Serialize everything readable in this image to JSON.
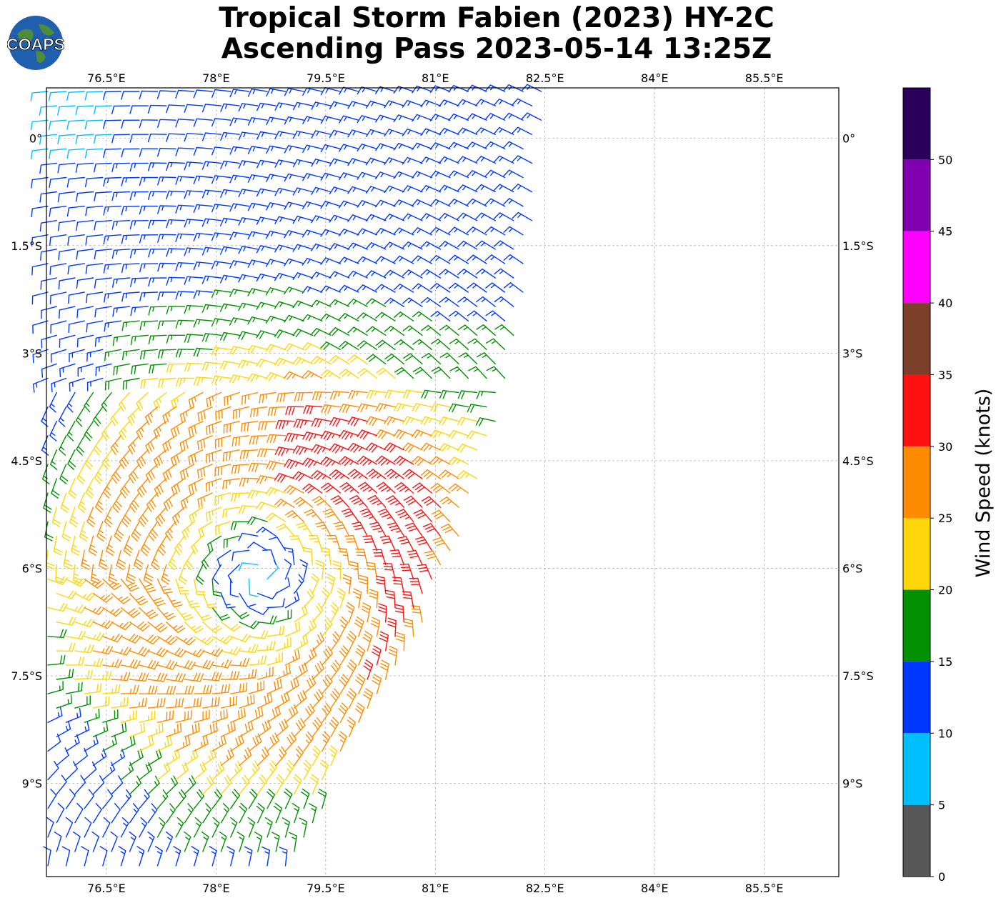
{
  "header": {
    "title_line1": "Tropical Storm Fabien (2023) HY-2C",
    "title_line2": "Ascending Pass 2023-05-14 13:25Z",
    "logo_text": "COAPS"
  },
  "map": {
    "lon_range": [
      75.68,
      86.52
    ],
    "lat_range": [
      -10.3,
      0.7
    ],
    "lon_ticks": [
      76.5,
      78,
      79.5,
      81,
      82.5,
      84,
      85.5
    ],
    "lon_tick_labels": [
      "76.5°E",
      "78°E",
      "79.5°E",
      "81°E",
      "82.5°E",
      "84°E",
      "85.5°E"
    ],
    "lat_ticks": [
      0,
      -1.5,
      -3,
      -4.5,
      -6,
      -7.5,
      -9
    ],
    "lat_tick_labels": [
      "0°",
      "1.5°S",
      "3°S",
      "4.5°S",
      "6°S",
      "7.5°S",
      "9°S"
    ],
    "gridlines": true,
    "storm_center_approx": {
      "lon": 78.6,
      "lat": -6.1
    }
  },
  "colorbar": {
    "label": "Wind Speed (knots)",
    "bounds": [
      0,
      5,
      10,
      15,
      20,
      25,
      30,
      35,
      40,
      45,
      50,
      55
    ],
    "tick_labels": [
      "0",
      "5",
      "10",
      "15",
      "20",
      "25",
      "30",
      "35",
      "40",
      "45",
      "50"
    ],
    "colors": [
      "#585858",
      "#00bfff",
      "#0038ff",
      "#009000",
      "#ffd60a",
      "#ff8c00",
      "#ff1010",
      "#7b3f2a",
      "#ff00ff",
      "#8000b0",
      "#2a005a"
    ]
  }
}
